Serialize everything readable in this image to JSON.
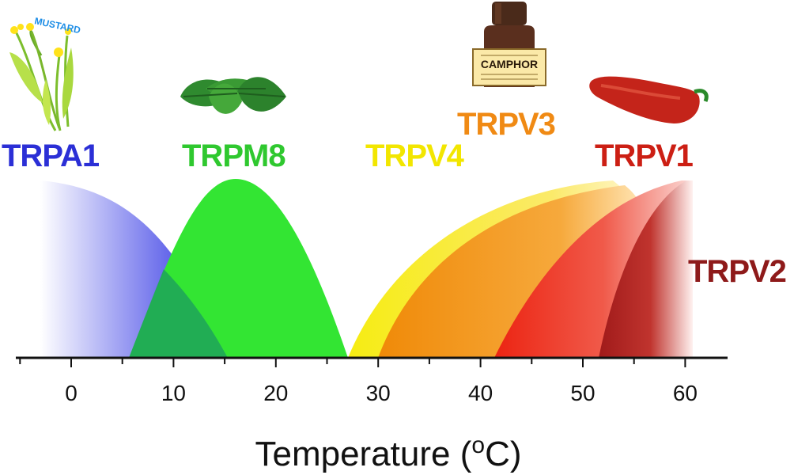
{
  "xaxis": {
    "title_main": "Temperature (",
    "title_sup": "o",
    "title_unit": "C)",
    "ticks": [
      0,
      10,
      20,
      30,
      40,
      50,
      60
    ],
    "range": [
      -5,
      65
    ]
  },
  "channels": [
    {
      "name": "TRPA1",
      "color": "#2b2fd6",
      "range": [
        -3,
        15.5
      ]
    },
    {
      "name": "TRPM8",
      "color": "#2fc82f",
      "range": [
        6,
        27.5
      ]
    },
    {
      "name": "TRPV4",
      "color": "#f2e600",
      "range": [
        27,
        55
      ]
    },
    {
      "name": "TRPV3",
      "color": "#f08a14",
      "range": [
        30,
        55
      ]
    },
    {
      "name": "TRPV1",
      "color": "#cc1f14",
      "range": [
        41.5,
        60.5
      ]
    },
    {
      "name": "TRPV2",
      "color": "#8e1a1a",
      "range": [
        51.5,
        60.5
      ]
    }
  ],
  "icons": {
    "mustard": {
      "name": "mustard-plant-icon",
      "text": "MUSTARD"
    },
    "mint": {
      "name": "mint-leaves-icon"
    },
    "camphor": {
      "name": "camphor-bottle-icon",
      "text": "CAMPHOR"
    },
    "pepper": {
      "name": "chili-pepper-icon"
    }
  }
}
